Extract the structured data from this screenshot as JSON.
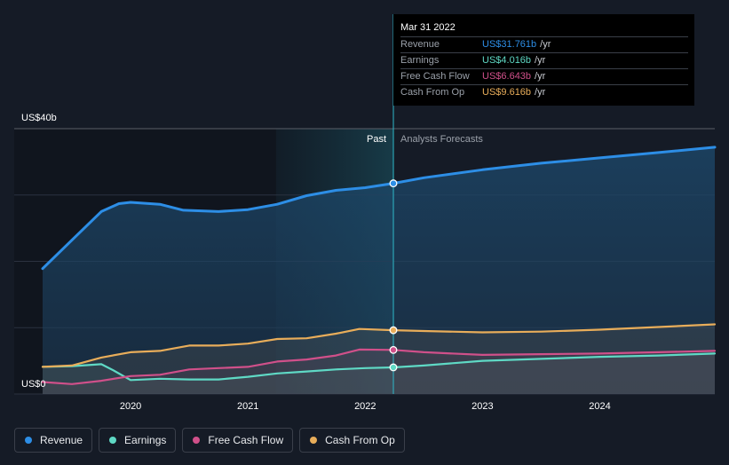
{
  "chart_data": {
    "type": "line",
    "y_axis": {
      "top_label": "US$40b",
      "bottom_label": "US$0",
      "ylim": [
        0,
        40
      ],
      "unit": "US$ billions"
    },
    "x_ticks": [
      "2020",
      "2021",
      "2022",
      "2023",
      "2024"
    ],
    "xlim": [
      2019.25,
      2024.98
    ],
    "divider_date": 2022.24,
    "past_label": "Past",
    "forecast_label": "Analysts Forecasts",
    "series": [
      {
        "key": "revenue",
        "name": "Revenue",
        "color": "#2d8ee6",
        "x": [
          2019.25,
          2019.5,
          2019.75,
          2019.9,
          2020.0,
          2020.25,
          2020.45,
          2020.75,
          2021.0,
          2021.25,
          2021.5,
          2021.75,
          2022.0,
          2022.24,
          2022.5,
          2023.0,
          2023.5,
          2024.0,
          2024.5,
          2024.98
        ],
        "values": [
          18.9,
          23.2,
          27.5,
          28.7,
          28.9,
          28.6,
          27.7,
          27.5,
          27.8,
          28.6,
          29.9,
          30.7,
          31.1,
          31.76,
          32.6,
          33.8,
          34.8,
          35.6,
          36.4,
          37.2
        ]
      },
      {
        "key": "earnings",
        "name": "Earnings",
        "color": "#5fd9c5",
        "x": [
          2019.25,
          2019.5,
          2019.75,
          2019.85,
          2020.0,
          2020.25,
          2020.5,
          2020.75,
          2021.0,
          2021.25,
          2021.5,
          2021.75,
          2022.0,
          2022.24,
          2022.5,
          2023.0,
          2023.5,
          2024.0,
          2024.5,
          2024.98
        ],
        "values": [
          4.1,
          4.2,
          4.5,
          3.6,
          2.1,
          2.3,
          2.2,
          2.2,
          2.6,
          3.1,
          3.4,
          3.7,
          3.9,
          4.016,
          4.3,
          5.0,
          5.3,
          5.6,
          5.8,
          6.1
        ]
      },
      {
        "key": "fcf",
        "name": "Free Cash Flow",
        "color": "#d0508a",
        "x": [
          2019.25,
          2019.5,
          2019.75,
          2020.0,
          2020.25,
          2020.5,
          2020.75,
          2021.0,
          2021.25,
          2021.5,
          2021.75,
          2021.95,
          2022.24,
          2022.5,
          2023.0,
          2023.5,
          2024.0,
          2024.5,
          2024.98
        ],
        "values": [
          1.8,
          1.5,
          2.0,
          2.7,
          2.9,
          3.7,
          3.9,
          4.1,
          4.9,
          5.2,
          5.8,
          6.7,
          6.643,
          6.3,
          5.9,
          6.0,
          6.1,
          6.3,
          6.5
        ]
      },
      {
        "key": "cfo",
        "name": "Cash From Op",
        "color": "#e8ad5a",
        "x": [
          2019.25,
          2019.5,
          2019.75,
          2020.0,
          2020.25,
          2020.5,
          2020.75,
          2021.0,
          2021.25,
          2021.5,
          2021.75,
          2021.95,
          2022.24,
          2022.5,
          2023.0,
          2023.5,
          2024.0,
          2024.5,
          2024.98
        ],
        "values": [
          4.1,
          4.3,
          5.5,
          6.3,
          6.5,
          7.3,
          7.3,
          7.6,
          8.3,
          8.4,
          9.1,
          9.8,
          9.616,
          9.5,
          9.3,
          9.4,
          9.7,
          10.1,
          10.5
        ]
      }
    ]
  },
  "tooltip": {
    "date": "Mar 31 2022",
    "rows": [
      {
        "label": "Revenue",
        "value": "US$31.761b",
        "unit": "/yr",
        "color": "#2d8ee6"
      },
      {
        "label": "Earnings",
        "value": "US$4.016b",
        "unit": "/yr",
        "color": "#5fd9c5"
      },
      {
        "label": "Free Cash Flow",
        "value": "US$6.643b",
        "unit": "/yr",
        "color": "#d0508a"
      },
      {
        "label": "Cash From Op",
        "value": "US$9.616b",
        "unit": "/yr",
        "color": "#e8ad5a"
      }
    ]
  },
  "legend": [
    {
      "label": "Revenue",
      "color": "#2d8ee6"
    },
    {
      "label": "Earnings",
      "color": "#5fd9c5"
    },
    {
      "label": "Free Cash Flow",
      "color": "#d0508a"
    },
    {
      "label": "Cash From Op",
      "color": "#e8ad5a"
    }
  ]
}
